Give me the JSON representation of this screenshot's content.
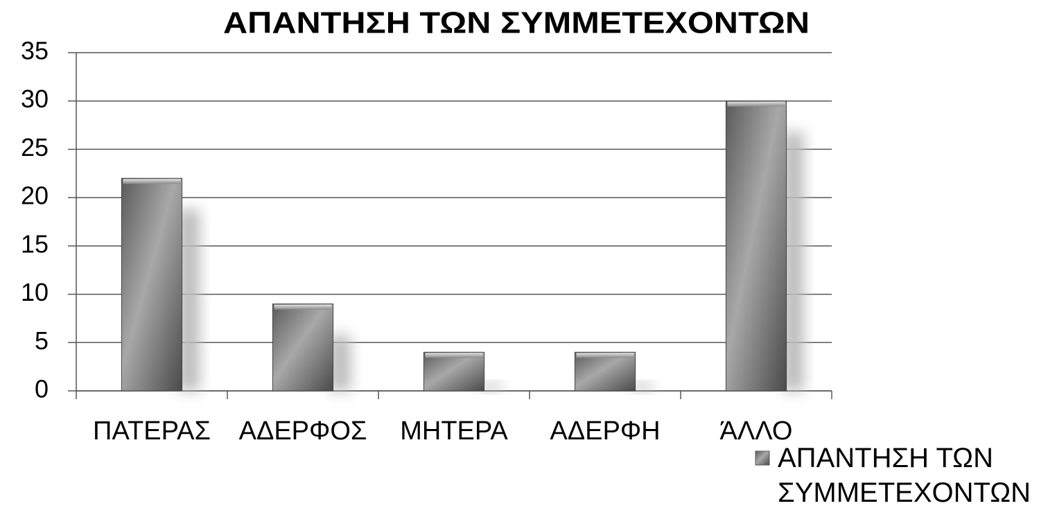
{
  "chart_data": {
    "type": "bar",
    "title": "ΑΠΑΝΤΗΣΗ ΤΩΝ ΣΥΜΜΕΤΕΧΟΝΤΩΝ",
    "categories": [
      "ΠΑΤΕΡΑΣ",
      "ΑΔΕΡΦΟΣ",
      "ΜΗΤΕΡΑ",
      "ΑΔΕΡΦΗ",
      "ΆΛΛΟ"
    ],
    "series": [
      {
        "name": "ΑΠΑΝΤΗΣΗ ΤΩΝ ΣΥΜΜΕΤΕΧΟΝΤΩΝ",
        "color": "#808080",
        "values": [
          22,
          9,
          4,
          4,
          30
        ]
      }
    ],
    "ylim": [
      0,
      35
    ],
    "yticks": [
      0,
      5,
      10,
      15,
      20,
      25,
      30,
      35
    ],
    "grid": true,
    "legend": "bottom-right"
  }
}
